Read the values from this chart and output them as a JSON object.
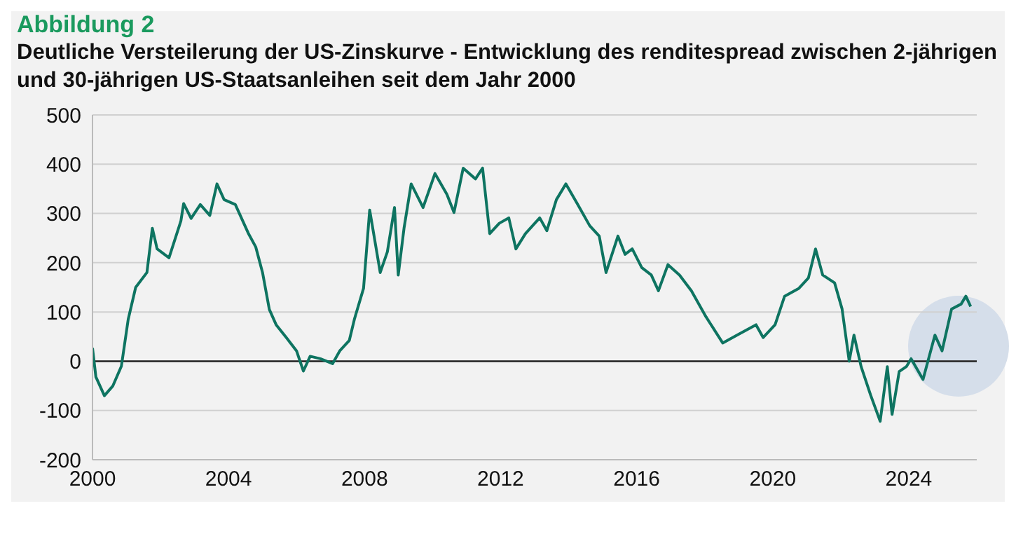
{
  "chart_data": {
    "type": "line",
    "title": "Abbildung 2",
    "subtitle": "Deutliche Versteilerung der US-Zinskurve - Entwicklung des renditespread zwischen 2-jährigen und 30-jährigen US-Staatsanleihen seit dem Jahr 2000",
    "x": [
      2000.0,
      2000.1,
      2000.35,
      2000.6,
      2000.85,
      2001.05,
      2001.27,
      2001.6,
      2001.76,
      2001.9,
      2002.25,
      2002.6,
      2002.68,
      2002.9,
      2003.17,
      2003.45,
      2003.66,
      2003.87,
      2004.2,
      2004.58,
      2004.8,
      2005.0,
      2005.2,
      2005.4,
      2005.7,
      2006.0,
      2006.2,
      2006.4,
      2006.7,
      2007.06,
      2007.27,
      2007.55,
      2007.7,
      2007.97,
      2008.15,
      2008.46,
      2008.67,
      2008.88,
      2008.99,
      2009.16,
      2009.37,
      2009.72,
      2010.07,
      2010.42,
      2010.63,
      2010.9,
      2011.26,
      2011.47,
      2011.68,
      2011.96,
      2012.24,
      2012.45,
      2012.73,
      2013.15,
      2013.36,
      2013.64,
      2013.92,
      2014.27,
      2014.62,
      2014.9,
      2015.1,
      2015.45,
      2015.66,
      2015.87,
      2016.15,
      2016.43,
      2016.64,
      2016.92,
      2017.26,
      2017.61,
      2018.04,
      2018.53,
      2018.95,
      2019.51,
      2019.72,
      2020.07,
      2020.35,
      2020.77,
      2021.05,
      2021.26,
      2021.47,
      2021.82,
      2022.04,
      2022.25,
      2022.39,
      2022.6,
      2022.88,
      2023.16,
      2023.37,
      2023.51,
      2023.72,
      2023.93,
      2024.07,
      2024.42,
      2024.77,
      2024.98,
      2025.26,
      2025.54,
      2025.68,
      2025.82
    ],
    "series": [
      {
        "color": "#0e7461",
        "values": [
          27,
          -32,
          -70,
          -50,
          -10,
          85,
          150,
          180,
          270,
          228,
          210,
          285,
          320,
          290,
          318,
          296,
          360,
          328,
          318,
          260,
          232,
          180,
          105,
          74,
          48,
          21,
          -20,
          10,
          5,
          -5,
          21,
          42,
          85,
          148,
          307,
          180,
          222,
          312,
          175,
          270,
          360,
          312,
          381,
          339,
          302,
          392,
          370,
          392,
          259,
          280,
          291,
          228,
          259,
          291,
          265,
          328,
          360,
          318,
          275,
          254,
          180,
          254,
          217,
          228,
          190,
          175,
          143,
          196,
          175,
          143,
          90,
          37,
          53,
          74,
          48,
          74,
          132,
          148,
          169,
          228,
          175,
          159,
          106,
          0,
          53,
          -11,
          -69,
          -122,
          -11,
          -108,
          -21,
          -11,
          5,
          -37,
          53,
          21,
          106,
          116,
          132,
          111
        ]
      }
    ],
    "xlim": [
      2000,
      2026
    ],
    "xticks": [
      2000,
      2004,
      2008,
      2012,
      2016,
      2020,
      2024
    ],
    "ylim": [
      -200,
      500
    ],
    "yticks": [
      -200,
      -100,
      0,
      100,
      200,
      300,
      400,
      500
    ],
    "grid": "y",
    "marker": "none",
    "line_style": "solid"
  }
}
